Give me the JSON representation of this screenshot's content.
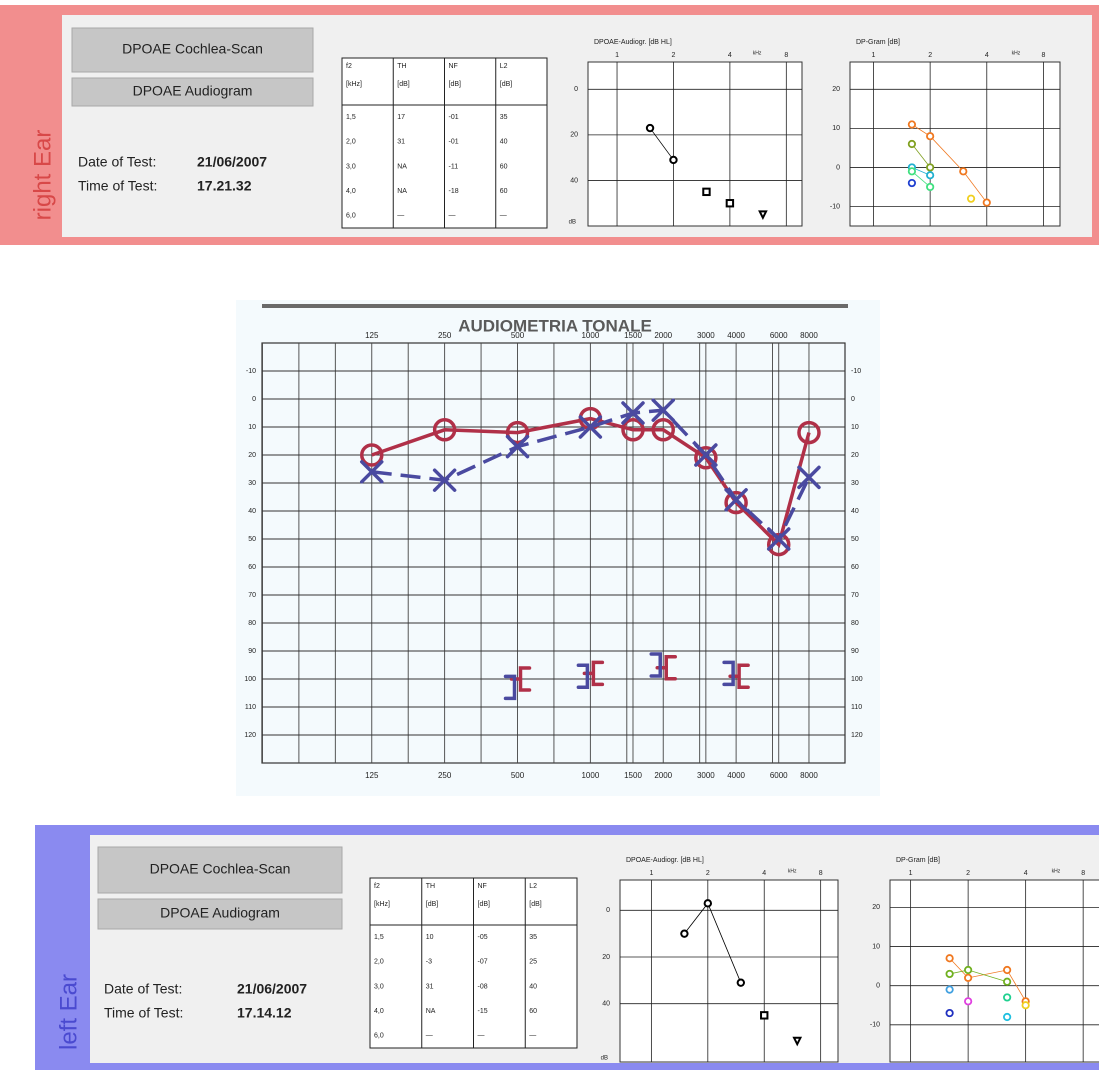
{
  "right_ear": {
    "side_label": "right Ear",
    "buttons": [
      "DPOAE Cochlea-Scan",
      "DPOAE Audiogram"
    ],
    "date_label": "Date of Test:",
    "date": "21/06/2007",
    "time_label": "Time of Test:",
    "time": "17.21.32",
    "table": {
      "header": [
        [
          "f2",
          "[kHz]"
        ],
        [
          "TH",
          "[dB]"
        ],
        [
          "NF",
          "[dB]"
        ],
        [
          "L2",
          "[dB]"
        ]
      ],
      "rows": [
        [
          "1,5",
          "17",
          "-01",
          "35"
        ],
        [
          "2,0",
          "31",
          "-01",
          "40"
        ],
        [
          "3,0",
          "NA",
          "-11",
          "60"
        ],
        [
          "4,0",
          "NA",
          "-18",
          "60"
        ],
        [
          "6,0",
          "—",
          "—",
          "—"
        ]
      ]
    },
    "dpoae_audiogram": {
      "type": "scatter",
      "title": "DPOAE-Audiogr. [dB HL]",
      "x_unit": "kHz",
      "y_unit": "dB",
      "log_x": true,
      "y_inverted": true,
      "xlim": [
        0.7,
        9.7
      ],
      "ylim": [
        -12,
        60
      ],
      "xticks": [
        1,
        2,
        4,
        8
      ],
      "yticks": [
        0,
        20,
        40
      ],
      "series": [
        {
          "marker": "circle",
          "color": "#000000",
          "line": true,
          "x": [
            1.5,
            2
          ],
          "values": [
            17,
            31
          ]
        },
        {
          "marker": "square",
          "color": "#000000",
          "line": false,
          "x": [
            3,
            4
          ],
          "values": [
            45,
            50
          ]
        },
        {
          "marker": "triangle",
          "color": "#000000",
          "line": false,
          "x": [
            6
          ],
          "values": [
            55
          ]
        }
      ]
    },
    "dp_gram": {
      "type": "line",
      "title": "DP-Gram [dB]",
      "x_unit": "kHz",
      "log_x": true,
      "y_inverted": false,
      "xlim": [
        0.75,
        9.8
      ],
      "ylim": [
        -15,
        27
      ],
      "xticks": [
        1,
        2,
        4,
        8
      ],
      "yticks": [
        -10,
        0,
        10,
        20
      ],
      "series": [
        {
          "marker": "circle",
          "color": "#f07820",
          "line": true,
          "x": [
            1.6,
            2,
            3,
            4
          ],
          "values": [
            11,
            8,
            -1,
            -9
          ]
        },
        {
          "marker": "circle",
          "color": "#80a020",
          "line": true,
          "x": [
            1.6,
            2
          ],
          "values": [
            6,
            0
          ]
        },
        {
          "marker": "circle",
          "color": "#20b0d0",
          "line": true,
          "x": [
            1.6,
            2
          ],
          "values": [
            0,
            -2
          ]
        },
        {
          "marker": "circle",
          "color": "#2040d0",
          "line": false,
          "x": [
            1.6
          ],
          "values": [
            -4
          ]
        },
        {
          "marker": "circle",
          "color": "#40e080",
          "line": true,
          "x": [
            1.6,
            2
          ],
          "values": [
            -1,
            -5
          ]
        },
        {
          "marker": "circle",
          "color": "#f0d020",
          "line": false,
          "x": [
            3.3
          ],
          "values": [
            -8
          ]
        }
      ]
    }
  },
  "audiometry": {
    "type": "line",
    "title": "AUDIOMETRIA TONALE",
    "log_x": true,
    "y_inverted": true,
    "xlim": [
      44,
      11270
    ],
    "ylim": [
      -20,
      130
    ],
    "xticks": [
      125,
      250,
      500,
      1000,
      1500,
      2000,
      3000,
      4000,
      6000,
      8000
    ],
    "yticks": [
      -10,
      0,
      10,
      20,
      30,
      40,
      50,
      60,
      70,
      80,
      90,
      100,
      110,
      120
    ],
    "series": [
      {
        "marker": "circle",
        "color": "#b03048",
        "line": true,
        "dashed": false,
        "x": [
          125,
          250,
          500,
          1000,
          1500,
          2000,
          3000,
          4000,
          6000,
          8000
        ],
        "values": [
          20,
          11,
          12,
          7,
          11,
          11,
          21,
          37,
          52,
          12
        ]
      },
      {
        "marker": "cross",
        "color": "#4a4aa0",
        "line": true,
        "dashed": true,
        "x": [
          125,
          250,
          500,
          1000,
          1500,
          2000,
          3000,
          4000,
          6000,
          8000
        ],
        "values": [
          26,
          29,
          17,
          10,
          5,
          4,
          20,
          36,
          50,
          28
        ]
      },
      {
        "marker": "bracket-open",
        "color": "#b03048",
        "line": false,
        "dashed": false,
        "x": [
          500,
          1000,
          2000,
          4000
        ],
        "values": [
          100,
          98,
          96,
          99
        ]
      },
      {
        "marker": "bracket-close",
        "color": "#4a4aa0",
        "line": false,
        "dashed": false,
        "x": [
          500,
          1000,
          2000,
          4000
        ],
        "values": [
          103,
          99,
          95,
          98
        ]
      }
    ]
  },
  "left_ear": {
    "side_label": "left Ear",
    "buttons": [
      "DPOAE Cochlea-Scan",
      "DPOAE Audiogram"
    ],
    "date_label": "Date of Test:",
    "date": "21/06/2007",
    "time_label": "Time of Test:",
    "time": "17.14.12",
    "table": {
      "header": [
        [
          "f2",
          "[kHz]"
        ],
        [
          "TH",
          "[dB]"
        ],
        [
          "NF",
          "[dB]"
        ],
        [
          "L2",
          "[dB]"
        ]
      ],
      "rows": [
        [
          "1,5",
          "10",
          "-05",
          "35"
        ],
        [
          "2,0",
          "-3",
          "-07",
          "25"
        ],
        [
          "3,0",
          "31",
          "-08",
          "40"
        ],
        [
          "4,0",
          "NA",
          "-15",
          "60"
        ],
        [
          "6,0",
          "—",
          "—",
          "—"
        ]
      ]
    },
    "dpoae_audiogram": {
      "type": "scatter",
      "title": "DPOAE-Audiogr. [dB HL]",
      "x_unit": "kHz",
      "y_unit": "dB",
      "log_x": true,
      "y_inverted": true,
      "xlim": [
        0.68,
        9.9
      ],
      "ylim": [
        -13,
        65
      ],
      "xticks": [
        1,
        2,
        4,
        8
      ],
      "yticks": [
        0,
        20,
        40
      ],
      "series": [
        {
          "marker": "circle",
          "color": "#000000",
          "line": true,
          "x": [
            1.5,
            2,
            3
          ],
          "values": [
            10,
            -3,
            31
          ]
        },
        {
          "marker": "square",
          "color": "#000000",
          "line": false,
          "x": [
            4
          ],
          "values": [
            45
          ]
        },
        {
          "marker": "triangle",
          "color": "#000000",
          "line": false,
          "x": [
            6
          ],
          "values": [
            56
          ]
        }
      ]
    },
    "dp_gram": {
      "type": "line",
      "title": "DP-Gram [dB]",
      "x_unit": "kHz",
      "log_x": true,
      "y_inverted": false,
      "xlim": [
        0.78,
        9.8
      ],
      "ylim": [
        -19.5,
        27
      ],
      "xticks": [
        1,
        2,
        4,
        8
      ],
      "yticks": [
        -10,
        0,
        10,
        20
      ],
      "series": [
        {
          "marker": "circle",
          "color": "#f07820",
          "line": true,
          "x": [
            1.6,
            2,
            3.2,
            4
          ],
          "values": [
            7,
            2,
            4,
            -4
          ]
        },
        {
          "marker": "circle",
          "color": "#70b020",
          "line": true,
          "x": [
            1.6,
            2,
            3.2
          ],
          "values": [
            3,
            4,
            1
          ]
        },
        {
          "marker": "circle",
          "color": "#40a0e0",
          "line": false,
          "x": [
            1.6
          ],
          "values": [
            -1
          ]
        },
        {
          "marker": "circle",
          "color": "#2030c0",
          "line": false,
          "x": [
            1.6
          ],
          "values": [
            -7
          ]
        },
        {
          "marker": "circle",
          "color": "#e040e0",
          "line": false,
          "x": [
            2
          ],
          "values": [
            -4
          ]
        },
        {
          "marker": "circle",
          "color": "#20d090",
          "line": false,
          "x": [
            3.2
          ],
          "values": [
            -3
          ]
        },
        {
          "marker": "circle",
          "color": "#20c0e0",
          "line": false,
          "x": [
            3.2
          ],
          "values": [
            -8
          ]
        },
        {
          "marker": "circle",
          "color": "#f0d020",
          "line": false,
          "x": [
            4
          ],
          "values": [
            -5
          ]
        }
      ]
    }
  }
}
